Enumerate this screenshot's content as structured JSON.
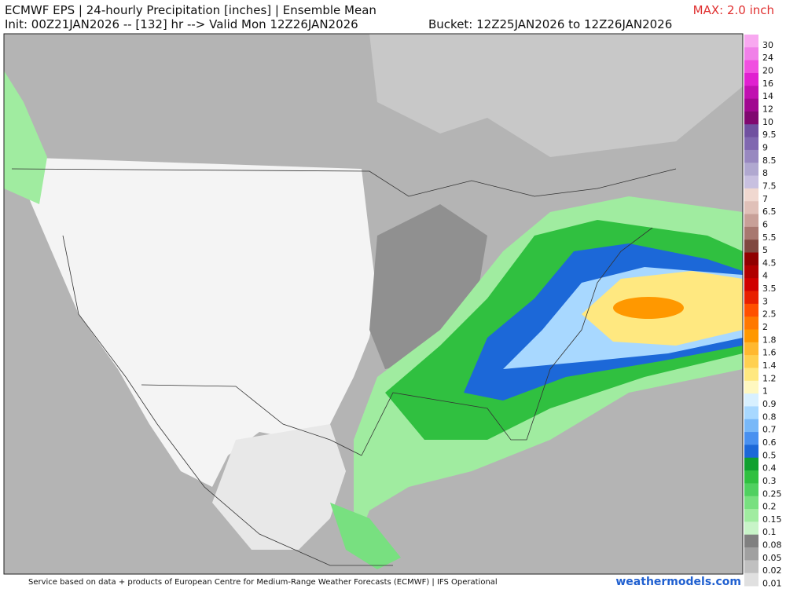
{
  "header": {
    "title": "ECMWF EPS | 24-hourly Precipitation [inches] | Ensemble Mean",
    "max": "MAX: 2.0 inch",
    "init": "Init: 00Z21JAN2026 -- [132] hr --> Valid Mon 12Z26JAN2026",
    "bucket": "Bucket: 12Z25JAN2026 to 12Z26JAN2026"
  },
  "legend": {
    "levels": [
      {
        "label": "30",
        "color": "#f8a8f0"
      },
      {
        "label": "24",
        "color": "#f080e8"
      },
      {
        "label": "20",
        "color": "#f050e0"
      },
      {
        "label": "16",
        "color": "#e020d0"
      },
      {
        "label": "14",
        "color": "#c010b0"
      },
      {
        "label": "12",
        "color": "#a00890"
      },
      {
        "label": "10",
        "color": "#800870"
      },
      {
        "label": "9.5",
        "color": "#7050a0"
      },
      {
        "label": "9",
        "color": "#8068b0"
      },
      {
        "label": "8.5",
        "color": "#9888c0"
      },
      {
        "label": "8",
        "color": "#b0a8d0"
      },
      {
        "label": "7.5",
        "color": "#c8c0e0"
      },
      {
        "label": "7",
        "color": "#f0d8d0"
      },
      {
        "label": "6.5",
        "color": "#e0c0b8"
      },
      {
        "label": "6",
        "color": "#c8a098"
      },
      {
        "label": "5.5",
        "color": "#a87870"
      },
      {
        "label": "5",
        "color": "#804840"
      },
      {
        "label": "4.5",
        "color": "#900000"
      },
      {
        "label": "4",
        "color": "#b00000"
      },
      {
        "label": "3.5",
        "color": "#d00000"
      },
      {
        "label": "3",
        "color": "#e82000"
      },
      {
        "label": "2.5",
        "color": "#ff5000"
      },
      {
        "label": "2",
        "color": "#ff7800"
      },
      {
        "label": "1.8",
        "color": "#ff9800"
      },
      {
        "label": "1.6",
        "color": "#ffb830"
      },
      {
        "label": "1.4",
        "color": "#ffd050"
      },
      {
        "label": "1.2",
        "color": "#ffe880"
      },
      {
        "label": "1",
        "color": "#fff8c0"
      },
      {
        "label": "0.9",
        "color": "#d8f0ff"
      },
      {
        "label": "0.8",
        "color": "#a8d8ff"
      },
      {
        "label": "0.7",
        "color": "#78b8f8"
      },
      {
        "label": "0.6",
        "color": "#4890f0"
      },
      {
        "label": "0.5",
        "color": "#1c68d8"
      },
      {
        "label": "0.4",
        "color": "#10a030"
      },
      {
        "label": "0.3",
        "color": "#30c040"
      },
      {
        "label": "0.25",
        "color": "#50d060"
      },
      {
        "label": "0.2",
        "color": "#78e080"
      },
      {
        "label": "0.15",
        "color": "#a0eca0"
      },
      {
        "label": "0.1",
        "color": "#c8f4c8"
      },
      {
        "label": "0.08",
        "color": "#808080"
      },
      {
        "label": "0.05",
        "color": "#a0a0a0"
      },
      {
        "label": "0.02",
        "color": "#c0c0c0"
      },
      {
        "label": "0.01",
        "color": "#e0e0e0"
      }
    ]
  },
  "footer": {
    "credit": "Service based on data + products of European Centre for Medium-Range Weather Forecasts (ECMWF) | IFS Operational",
    "site": "weathermodels.com"
  }
}
